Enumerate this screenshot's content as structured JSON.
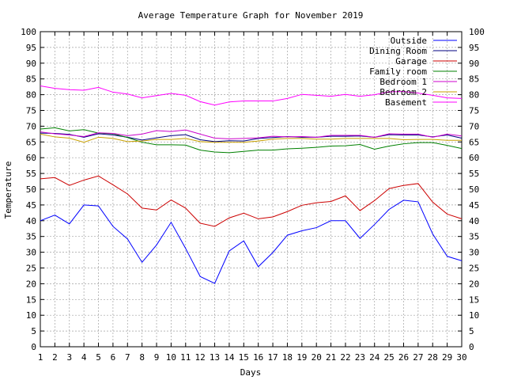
{
  "chart_data": {
    "type": "line",
    "title": "Average Temperature Graph for November 2019",
    "xlabel": "Days",
    "ylabel": "Temperature",
    "xlim": [
      1,
      30
    ],
    "ylim": [
      0,
      100
    ],
    "y_ticks": [
      0,
      5,
      10,
      15,
      20,
      25,
      30,
      35,
      40,
      45,
      50,
      55,
      60,
      65,
      70,
      75,
      80,
      85,
      90,
      95,
      100
    ],
    "x_ticks": [
      1,
      2,
      3,
      4,
      5,
      6,
      7,
      8,
      9,
      10,
      11,
      12,
      13,
      14,
      15,
      16,
      17,
      18,
      19,
      20,
      21,
      22,
      23,
      24,
      25,
      26,
      27,
      28,
      29,
      30
    ],
    "y_axis_mirrored_right": true,
    "grid": true,
    "legend_position": "top-right",
    "x": [
      1,
      2,
      3,
      4,
      5,
      6,
      7,
      8,
      9,
      10,
      11,
      12,
      13,
      14,
      15,
      16,
      17,
      18,
      19,
      20,
      21,
      22,
      23,
      24,
      25,
      26,
      27,
      28,
      29,
      30
    ],
    "series": [
      {
        "name": "Outside",
        "color": "#0000ff",
        "values": [
          40.0,
          41.8,
          39.0,
          45.0,
          44.7,
          38.2,
          34.2,
          26.8,
          32.3,
          39.5,
          31.2,
          22.3,
          20.1,
          30.4,
          33.6,
          25.4,
          29.9,
          35.4,
          36.8,
          37.8,
          40.0,
          40.0,
          34.4,
          38.8,
          43.6,
          46.5,
          46.0,
          35.8,
          28.7,
          27.3
        ]
      },
      {
        "name": "Dining Room",
        "color": "#000080",
        "values": [
          67.8,
          67.7,
          67.4,
          66.5,
          67.6,
          67.2,
          66.5,
          65.6,
          66.3,
          67.0,
          67.3,
          65.7,
          65.1,
          65.4,
          65.3,
          66.1,
          66.4,
          66.7,
          66.5,
          66.5,
          66.8,
          66.8,
          66.9,
          66.5,
          67.3,
          67.2,
          67.2,
          66.6,
          67.2,
          66.2
        ]
      },
      {
        "name": "Garage",
        "color": "#cc0000",
        "values": [
          53.3,
          53.7,
          51.2,
          52.9,
          54.2,
          51.4,
          48.5,
          44.0,
          43.4,
          46.6,
          44.0,
          39.2,
          38.2,
          40.9,
          42.4,
          40.6,
          41.2,
          42.9,
          44.9,
          45.7,
          46.1,
          47.9,
          43.2,
          46.4,
          50.2,
          51.2,
          51.8,
          45.9,
          42.1,
          40.6
        ]
      },
      {
        "name": "Family room",
        "color": "#008000",
        "values": [
          69.1,
          69.5,
          68.5,
          68.9,
          67.8,
          67.6,
          66.4,
          64.9,
          64.1,
          64.1,
          64.0,
          62.4,
          61.8,
          61.6,
          62.0,
          62.4,
          62.4,
          62.8,
          63.0,
          63.3,
          63.7,
          63.8,
          64.2,
          62.7,
          63.7,
          64.4,
          64.8,
          64.8,
          63.9,
          62.9
        ]
      },
      {
        "name": "Bedroom 1",
        "color": "#cc00cc",
        "values": [
          68.2,
          67.6,
          67.2,
          66.7,
          67.9,
          67.7,
          67.0,
          67.5,
          68.6,
          68.3,
          68.8,
          67.5,
          66.2,
          66.0,
          66.1,
          66.3,
          66.8,
          66.6,
          66.7,
          66.5,
          67.1,
          67.1,
          67.1,
          66.5,
          67.6,
          67.5,
          67.5,
          66.5,
          67.5,
          66.9
        ]
      },
      {
        "name": "Bedroom 2",
        "color": "#c8a000",
        "values": [
          67.5,
          66.6,
          66.2,
          64.9,
          66.5,
          66.1,
          65.1,
          65.3,
          65.8,
          65.8,
          66.1,
          65.1,
          64.9,
          64.9,
          64.9,
          65.3,
          65.9,
          66.1,
          66.1,
          65.9,
          65.9,
          66.1,
          66.1,
          66.1,
          66.1,
          65.7,
          65.8,
          65.8,
          65.5,
          65.5
        ]
      },
      {
        "name": "Basement",
        "color": "#ff00ff",
        "values": [
          82.8,
          82.0,
          81.6,
          81.4,
          82.3,
          80.8,
          80.2,
          79.0,
          79.7,
          80.4,
          79.8,
          77.8,
          76.7,
          77.7,
          78.0,
          78.0,
          78.0,
          78.8,
          80.1,
          79.8,
          79.5,
          80.1,
          79.5,
          80.0,
          80.9,
          81.0,
          80.5,
          79.8,
          79.0,
          78.8
        ]
      }
    ]
  }
}
